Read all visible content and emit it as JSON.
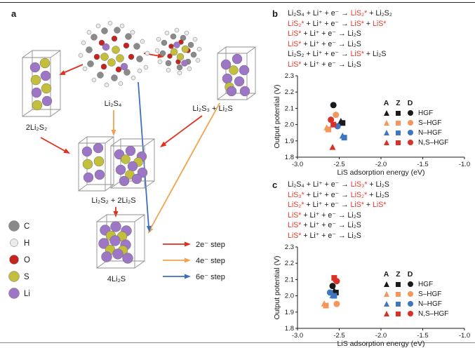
{
  "panel_a": {
    "label": "a",
    "labels": {
      "left_box": "2Li₂S₂",
      "center_molecule": "Li₂S₄",
      "right_group": "Li₂S₃ + Li₂S",
      "middle_boxes": "Li₂S₂ + 2Li₂S",
      "bottom_box": "4Li₂S"
    },
    "atom_legend": [
      {
        "symbol": "C",
        "color": "#8a8a8a"
      },
      {
        "symbol": "H",
        "color": "#ebebeb"
      },
      {
        "symbol": "O",
        "color": "#c6231f"
      },
      {
        "symbol": "S",
        "color": "#c3bf3d"
      },
      {
        "symbol": "Li",
        "color": "#9d76c6"
      }
    ],
    "arrow_legend": [
      {
        "key": "2e",
        "label": "2e⁻ step",
        "color": "#e0301e"
      },
      {
        "key": "4e",
        "label": "4e⁻ step",
        "color": "#f0a24f"
      },
      {
        "key": "6e",
        "label": "6e⁻ step",
        "color": "#3e6fbd"
      }
    ]
  },
  "panel_b": {
    "label": "b",
    "reactions": [
      [
        {
          "t": "Li₂S₄ + Li⁺ + e⁻ → ",
          "red": false
        },
        {
          "t": "LiS₂*",
          "red": true
        },
        {
          "t": " + Li₂S₂",
          "red": false
        }
      ],
      [
        {
          "t": "LiS₂*",
          "red": true
        },
        {
          "t": " + Li⁺ + e⁻ → ",
          "red": false
        },
        {
          "t": "LiS*",
          "red": true
        },
        {
          "t": " + ",
          "red": false
        },
        {
          "t": "LiS*",
          "red": true
        }
      ],
      [
        {
          "t": "LiS*",
          "red": true
        },
        {
          "t": " + Li⁺ + e⁻ → Li₂S",
          "red": false
        }
      ],
      [
        {
          "t": "LiS*",
          "red": true
        },
        {
          "t": " + Li⁺ + e⁻ → Li₂S",
          "red": false
        }
      ],
      [
        {
          "t": "Li₂S₂ + Li⁺ + e⁻ → ",
          "red": false
        },
        {
          "t": "LiS*",
          "red": true
        },
        {
          "t": " + Li₂S",
          "red": false
        }
      ],
      [
        {
          "t": "LiS*",
          "red": true
        },
        {
          "t": " + Li⁺ + e⁻ → Li₂S",
          "red": false
        }
      ]
    ]
  },
  "panel_c": {
    "label": "c",
    "reactions": [
      [
        {
          "t": "Li₂S₄ + Li⁺ + e⁻ → ",
          "red": false
        },
        {
          "t": "LiS₃*",
          "red": true
        },
        {
          "t": " + Li₂S",
          "red": false
        }
      ],
      [
        {
          "t": "LiS₃*",
          "red": true
        },
        {
          "t": " + Li⁺ + e⁻ → ",
          "red": false
        },
        {
          "t": "LiS₂*",
          "red": true
        },
        {
          "t": " + Li₂S",
          "red": false
        }
      ],
      [
        {
          "t": "LiS₂*",
          "red": true
        },
        {
          "t": " + Li⁺ + e⁻ → ",
          "red": false
        },
        {
          "t": "LiS*",
          "red": true
        },
        {
          "t": " + ",
          "red": false
        },
        {
          "t": "LiS*",
          "red": true
        }
      ],
      [
        {
          "t": "LiS*",
          "red": true
        },
        {
          "t": " + Li⁺ + e⁻ → Li₂S",
          "red": false
        }
      ],
      [
        {
          "t": "LiS*",
          "red": true
        },
        {
          "t": " + Li⁺ + e⁻ → Li₂S",
          "red": false
        }
      ],
      [
        {
          "t": "LiS*",
          "red": true
        },
        {
          "t": " + Li⁺ + e⁻ → Li₂S",
          "red": false
        }
      ]
    ]
  },
  "legend": {
    "columns": [
      "A",
      "Z",
      "D"
    ],
    "rows": [
      {
        "label": "HGF",
        "color": "#1a1a1a"
      },
      {
        "label": "S–HGF",
        "color": "#f5965c"
      },
      {
        "label": "N–HGF",
        "color": "#3f76c2"
      },
      {
        "label": "N,S–HGF",
        "color": "#d93125"
      }
    ]
  },
  "chart_data": [
    {
      "id": "panel_b",
      "type": "scatter",
      "xlabel": "LiS adsorption energy (eV)",
      "ylabel": "Output potential (V)",
      "xlim": [
        -3.0,
        -1.0
      ],
      "ylim": [
        1.8,
        2.3
      ],
      "xticks": [
        -3.0,
        -2.5,
        -2.0,
        -1.5,
        -1.0
      ],
      "xtick_labels": [
        "-3.0",
        "-2.5",
        "-2.0",
        "-1.5",
        "-1.0"
      ],
      "yticks": [
        1.8,
        1.9,
        2.0,
        2.1,
        2.2,
        2.3
      ],
      "ytick_labels": [
        "1.8",
        "1.9",
        "2.0",
        "2.1",
        "2.2",
        "2.3"
      ],
      "grid": false,
      "legend_position": "inside-right",
      "series": [
        {
          "name": "HGF",
          "color": "#1a1a1a",
          "points": [
            {
              "column": "A",
              "marker": "triangle",
              "x": -2.48,
              "y": 2.02
            },
            {
              "column": "Z",
              "marker": "square",
              "x": -2.46,
              "y": 2.01
            },
            {
              "column": "D",
              "marker": "circle",
              "x": -2.57,
              "y": 2.12
            }
          ]
        },
        {
          "name": "S–HGF",
          "color": "#f5965c",
          "points": [
            {
              "column": "A",
              "marker": "triangle",
              "x": -2.65,
              "y": 1.98
            },
            {
              "column": "Z",
              "marker": "square",
              "x": -2.63,
              "y": 1.97
            },
            {
              "column": "D",
              "marker": "circle",
              "x": -2.54,
              "y": 2.06
            }
          ]
        },
        {
          "name": "N–HGF",
          "color": "#3f76c2",
          "points": [
            {
              "column": "A",
              "marker": "triangle",
              "x": -2.46,
              "y": 1.93
            },
            {
              "column": "Z",
              "marker": "square",
              "x": -2.44,
              "y": 1.92
            },
            {
              "column": "D",
              "marker": "circle",
              "x": -2.52,
              "y": 1.99
            }
          ]
        },
        {
          "name": "N,S–HGF",
          "color": "#d93125",
          "points": [
            {
              "column": "A",
              "marker": "triangle",
              "x": -2.58,
              "y": 1.86
            },
            {
              "column": "Z",
              "marker": "square",
              "x": -2.57,
              "y": 2.0
            },
            {
              "column": "D",
              "marker": "circle",
              "x": -2.6,
              "y": 2.03
            }
          ]
        }
      ]
    },
    {
      "id": "panel_c",
      "type": "scatter",
      "xlabel": "LiS adsorption energy (eV)",
      "ylabel": "Output potential (V)",
      "xlim": [
        -3.0,
        -1.0
      ],
      "ylim": [
        1.8,
        2.3
      ],
      "xticks": [
        -3.0,
        -2.5,
        -2.0,
        -1.5,
        -1.0
      ],
      "xtick_labels": [
        "-3.0",
        "-2.5",
        "-2.0",
        "-1.5",
        "-1.0"
      ],
      "yticks": [
        1.8,
        1.9,
        2.0,
        2.1,
        2.2,
        2.3
      ],
      "ytick_labels": [
        "1.8",
        "1.9",
        "2.0",
        "2.1",
        "2.2",
        "2.3"
      ],
      "grid": false,
      "legend_position": "inside-right",
      "series": [
        {
          "name": "HGF",
          "color": "#1a1a1a",
          "points": [
            {
              "column": "A",
              "marker": "triangle",
              "x": -2.56,
              "y": 2.03
            },
            {
              "column": "Z",
              "marker": "square",
              "x": -2.54,
              "y": 2.02
            },
            {
              "column": "D",
              "marker": "circle",
              "x": -2.58,
              "y": 2.06
            }
          ]
        },
        {
          "name": "S–HGF",
          "color": "#f5965c",
          "points": [
            {
              "column": "A",
              "marker": "triangle",
              "x": -2.68,
              "y": 1.95
            },
            {
              "column": "Z",
              "marker": "square",
              "x": -2.66,
              "y": 1.94
            },
            {
              "column": "D",
              "marker": "circle",
              "x": -2.53,
              "y": 1.95
            }
          ]
        },
        {
          "name": "N–HGF",
          "color": "#3f76c2",
          "points": [
            {
              "column": "A",
              "marker": "triangle",
              "x": -2.58,
              "y": 2.0
            },
            {
              "column": "Z",
              "marker": "square",
              "x": -2.56,
              "y": 2.0
            },
            {
              "column": "D",
              "marker": "circle",
              "x": -2.61,
              "y": 2.02
            }
          ]
        },
        {
          "name": "N,S–HGF",
          "color": "#d93125",
          "points": [
            {
              "column": "A",
              "marker": "triangle",
              "x": -2.54,
              "y": 2.1
            },
            {
              "column": "Z",
              "marker": "square",
              "x": -2.56,
              "y": 2.11
            },
            {
              "column": "D",
              "marker": "circle",
              "x": -2.53,
              "y": 2.09
            }
          ]
        }
      ]
    }
  ]
}
